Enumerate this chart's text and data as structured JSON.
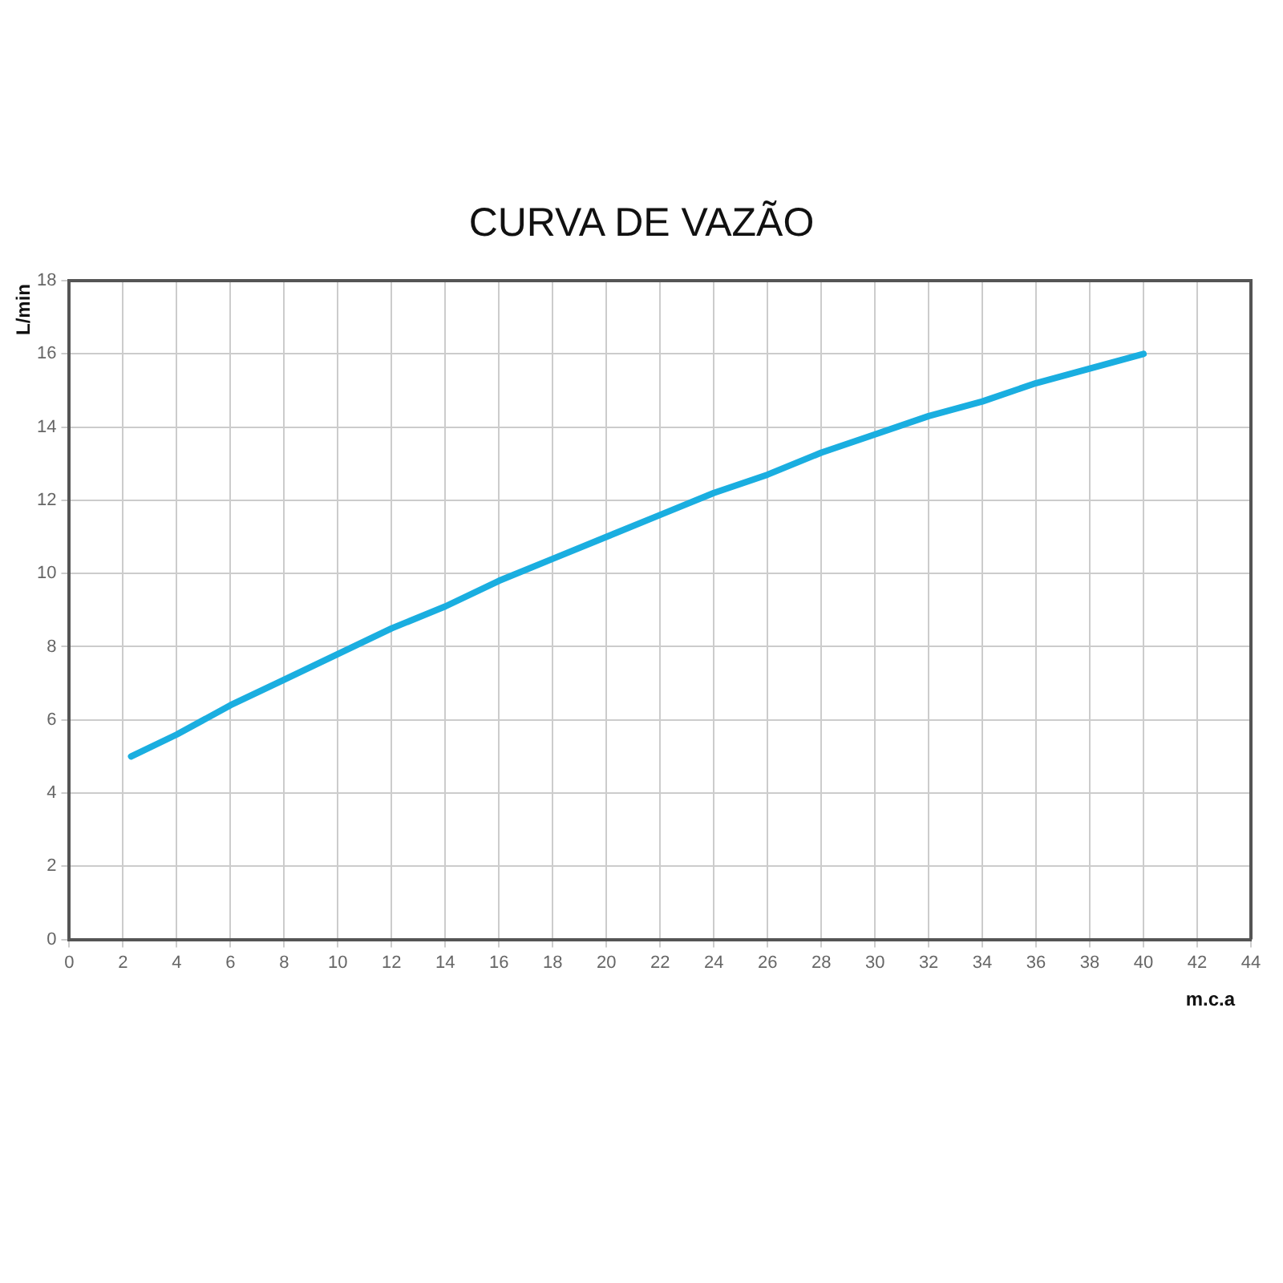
{
  "chart_data": {
    "type": "line",
    "title": "CURVA DE VAZÃO",
    "xlabel": "m.c.a",
    "ylabel": "L/min",
    "x": [
      2.3,
      4,
      6,
      8,
      10,
      12,
      14,
      16,
      18,
      20,
      22,
      24,
      26,
      28,
      30,
      32,
      34,
      36,
      38,
      40
    ],
    "series": [
      {
        "color": "#1aaee0",
        "values": [
          5.0,
          5.6,
          6.4,
          7.1,
          7.8,
          8.5,
          9.1,
          9.8,
          10.4,
          11.0,
          11.6,
          12.2,
          12.7,
          13.3,
          13.8,
          14.3,
          14.7,
          15.2,
          15.6,
          16.0
        ]
      }
    ],
    "xlim": [
      0,
      44
    ],
    "xticks": [
      0,
      2,
      4,
      6,
      8,
      10,
      12,
      14,
      16,
      18,
      20,
      22,
      24,
      26,
      28,
      30,
      32,
      34,
      36,
      38,
      40,
      42,
      44
    ],
    "ylim": [
      0,
      18
    ],
    "yticks": [
      0,
      2,
      4,
      6,
      8,
      10,
      12,
      14,
      16,
      18
    ],
    "grid": true,
    "legend": false,
    "marker": "none",
    "line_style": "solid"
  }
}
